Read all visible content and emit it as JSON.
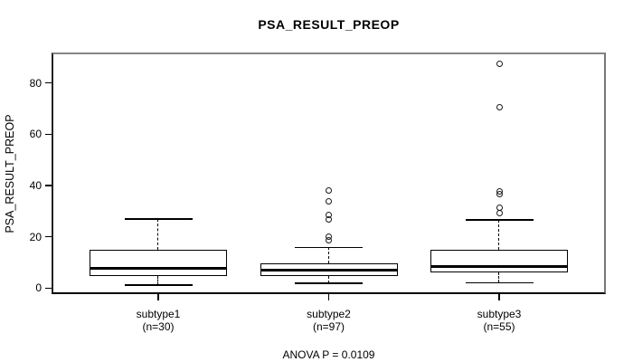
{
  "title": "PSA_RESULT_PREOP",
  "footer": {
    "anova_label": "ANOVA P = 0.0109"
  },
  "colors": {
    "background": "#ffffff",
    "box_fill": "#ffffff",
    "line": "#000000",
    "frame_gray": "#868686",
    "text": "#000000"
  },
  "chart_data": {
    "type": "boxplot",
    "title": "PSA_RESULT_PREOP",
    "xlabel": "",
    "ylabel": "PSA_RESULT_PREOP",
    "ylim": [
      -3.5,
      91.5
    ],
    "yticks": [
      0,
      20,
      40,
      60,
      80
    ],
    "grid": false,
    "legend": null,
    "categories": [
      "subtype1",
      "subtype2",
      "subtype3"
    ],
    "annotation": "ANOVA P = 0.0109",
    "groups": [
      {
        "label": "subtype1",
        "sublabel": "(n=30)",
        "n": 30,
        "whisker_low": 1.2,
        "q1": 4.8,
        "median": 7.7,
        "q3": 14.8,
        "whisker_high": 27.0,
        "outliers": []
      },
      {
        "label": "subtype2",
        "sublabel": "(n=97)",
        "n": 97,
        "whisker_low": 1.8,
        "q1": 4.7,
        "median": 7.1,
        "q3": 9.7,
        "whisker_high": 15.9,
        "outliers": [
          18.6,
          20.1,
          26.9,
          28.4,
          33.9,
          38.2
        ]
      },
      {
        "label": "subtype3",
        "sublabel": "(n=55)",
        "n": 55,
        "whisker_low": 2.1,
        "q1": 6.1,
        "median": 8.5,
        "q3": 14.9,
        "whisker_high": 26.5,
        "outliers": [
          29.1,
          31.2,
          36.5,
          37.6,
          70.5,
          87.6
        ]
      }
    ]
  }
}
